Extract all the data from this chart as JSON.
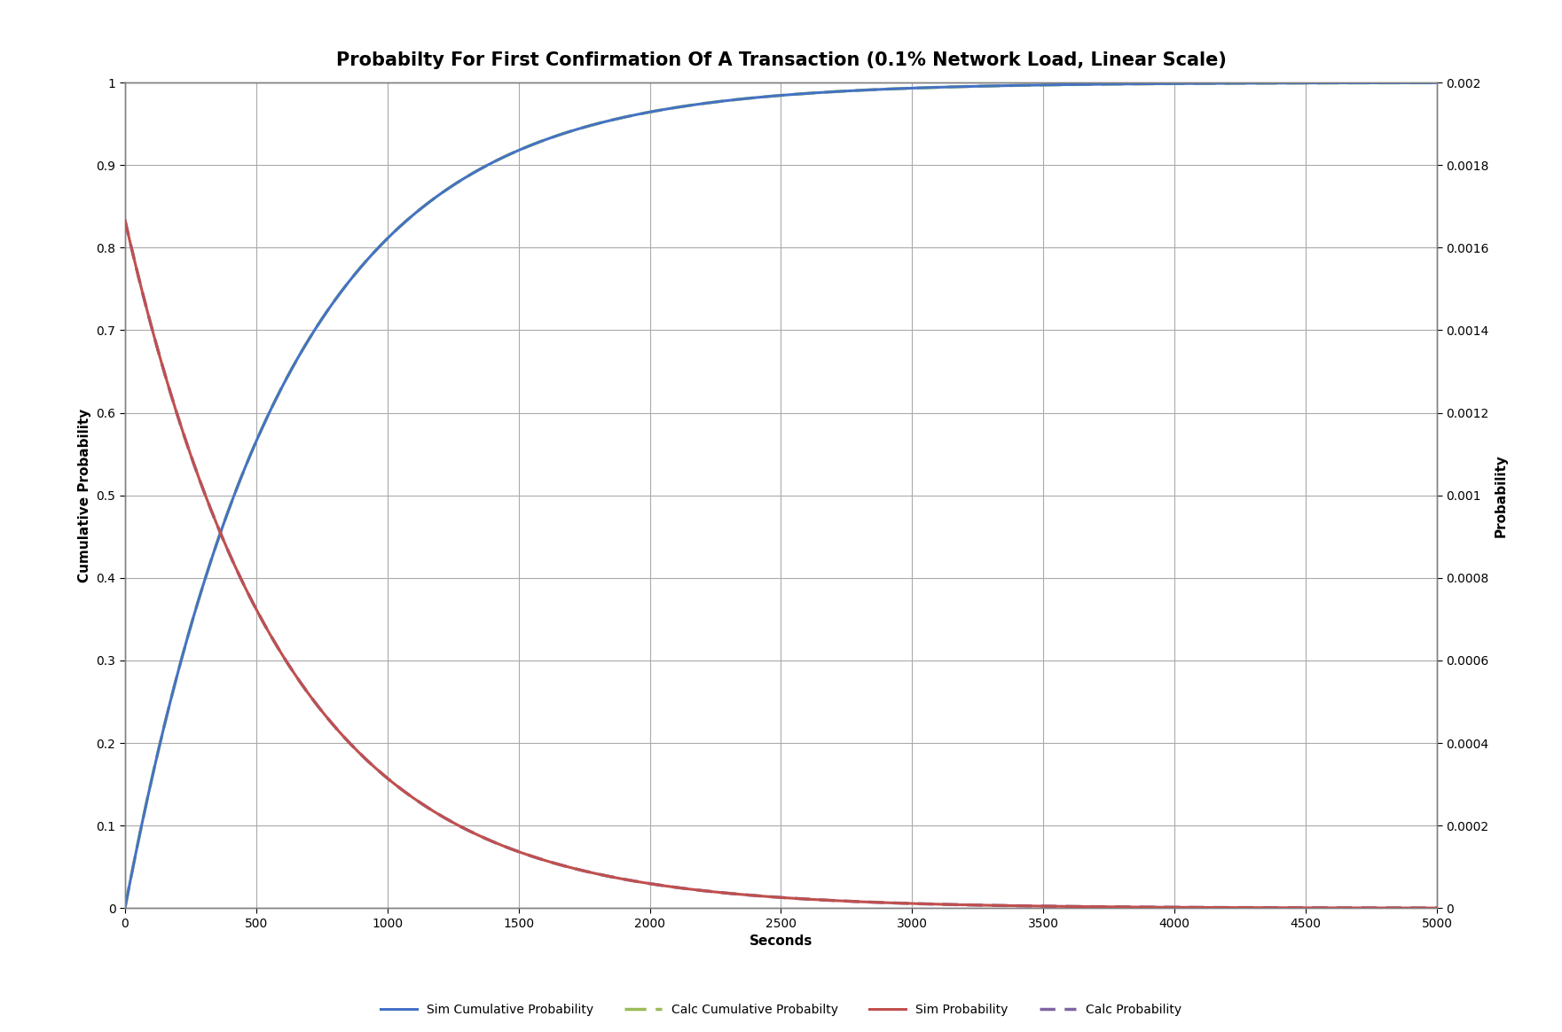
{
  "title": "Probabilty For First Confirmation Of A Transaction (0.1% Network Load, Linear Scale)",
  "xlabel": "Seconds",
  "ylabel_left": "Cumulative Probability",
  "ylabel_right": "Probability",
  "xlim": [
    0,
    5000
  ],
  "ylim_left": [
    0,
    1.0
  ],
  "ylim_right": [
    0,
    0.002
  ],
  "xticks": [
    0,
    500,
    1000,
    1500,
    2000,
    2500,
    3000,
    3500,
    4000,
    4500,
    5000
  ],
  "yticks_left": [
    0,
    0.1,
    0.2,
    0.3,
    0.4,
    0.5,
    0.6,
    0.7,
    0.8,
    0.9,
    1.0
  ],
  "yticks_right": [
    0,
    0.0002,
    0.0004,
    0.0006,
    0.0008,
    0.001,
    0.0012,
    0.0014,
    0.0016,
    0.0018,
    0.002
  ],
  "lambda": 0.0016666667,
  "color_sim_cumulative": "#4472C4",
  "color_calc_cumulative": "#9BBB59",
  "color_sim_prob": "#C0504D",
  "color_calc_prob": "#8064A2",
  "label_sim_cumulative": "Sim Cumulative Probability",
  "label_calc_cumulative": "Calc Cumulative Probabilty",
  "label_sim_prob": "Sim Probability",
  "label_calc_prob": "Calc Probability",
  "plot_bg_color": "#E8E8E8",
  "fig_bg_color": "#F0F0F0",
  "grid_color": "#AAAAAA",
  "title_fontsize": 15,
  "axis_label_fontsize": 11,
  "tick_fontsize": 10,
  "legend_fontsize": 10,
  "linewidth_solid": 2.2,
  "linewidth_dashed": 2.5
}
